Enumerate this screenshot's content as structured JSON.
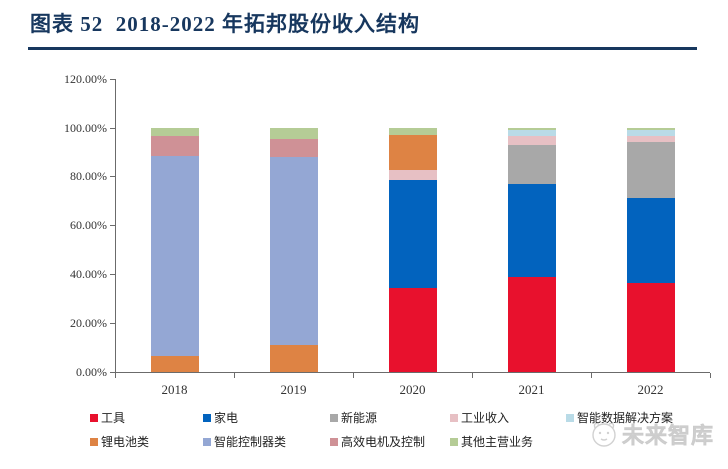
{
  "header": {
    "title": "图表 52  2018-2022 年拓邦股份收入结构",
    "accent_color": "#17375e"
  },
  "chart_data": {
    "type": "bar",
    "stacked": true,
    "title": "2018-2022 年拓邦股份收入结构",
    "unit": "percent of revenue",
    "categories": [
      "2018",
      "2019",
      "2020",
      "2021",
      "2022"
    ],
    "series": [
      {
        "name": "工具",
        "color": "#e8112d",
        "values": [
          0,
          0,
          34.5,
          38.8,
          36.5
        ]
      },
      {
        "name": "家电",
        "color": "#0263be",
        "values": [
          0,
          0,
          44.0,
          38.2,
          34.5
        ]
      },
      {
        "name": "新能源",
        "color": "#a8a8a8",
        "texture": "dots",
        "values": [
          0,
          0,
          0,
          16.0,
          23.0
        ]
      },
      {
        "name": "工业收入",
        "color": "#e7c0c4",
        "values": [
          0,
          0,
          4.0,
          3.5,
          2.5
        ]
      },
      {
        "name": "智能数据解决方案",
        "color": "#b9dbe7",
        "values": [
          0,
          0,
          0,
          2.7,
          2.5
        ]
      },
      {
        "name": "锂电池类",
        "color": "#de8344",
        "values": [
          6.5,
          11.0,
          14.5,
          0,
          0
        ]
      },
      {
        "name": "智能控制器类",
        "color": "#94a7d4",
        "values": [
          82.0,
          77.0,
          0,
          0,
          0
        ]
      },
      {
        "name": "高效电机及控制",
        "color": "#cf9196",
        "values": [
          8.0,
          7.5,
          0,
          0,
          0
        ]
      },
      {
        "name": "其他主营业务",
        "color": "#b5cc96",
        "values": [
          3.5,
          4.5,
          3.0,
          0.8,
          1.0
        ]
      }
    ],
    "y_ticks": [
      "0.00%",
      "20.00%",
      "40.00%",
      "60.00%",
      "80.00%",
      "100.00%",
      "120.00%"
    ],
    "ylim": [
      0,
      120
    ],
    "grid": false,
    "legend_position": "bottom",
    "legend_rows": [
      [
        "工具",
        "家电",
        "新能源",
        "工业收入",
        "智能数据解决方案"
      ],
      [
        "锂电池类",
        "智能控制器类",
        "高效电机及控制",
        "其他主营业务"
      ]
    ]
  },
  "watermark": {
    "text": "未来智库"
  }
}
